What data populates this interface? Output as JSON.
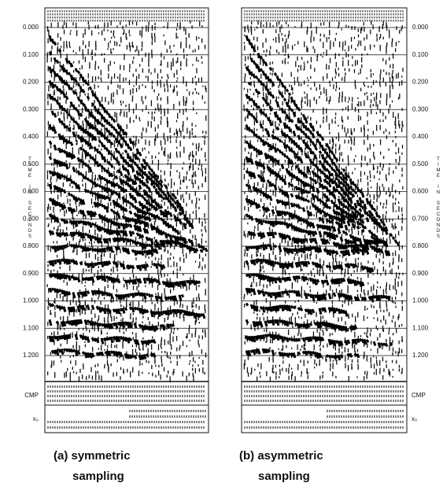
{
  "panels": [
    {
      "time_labels": [
        "0.000",
        "0.100",
        "0.200",
        "0.300",
        "0.400",
        "0.500",
        "0.600",
        "0.700",
        "0.800",
        "0.900",
        "1.000",
        "1.100",
        "1.200"
      ],
      "axis_label": "TIME IN SECONDS",
      "cmp_label": "CMP",
      "x0_label": "x₀",
      "caption": [
        "(a) symmetric",
        "sampling"
      ]
    },
    {
      "time_labels": [
        "0.000",
        "0.100",
        "0.200",
        "0.300",
        "0.400",
        "0.500",
        "0.600",
        "0.700",
        "0.800",
        "0.900",
        "1.000",
        "1.100",
        "1.200"
      ],
      "axis_label": "TIME IN SECONDS",
      "cmp_label": "CMP",
      "x0_label": "x₀",
      "caption": [
        "(b) asymmetric",
        "sampling"
      ]
    }
  ]
}
